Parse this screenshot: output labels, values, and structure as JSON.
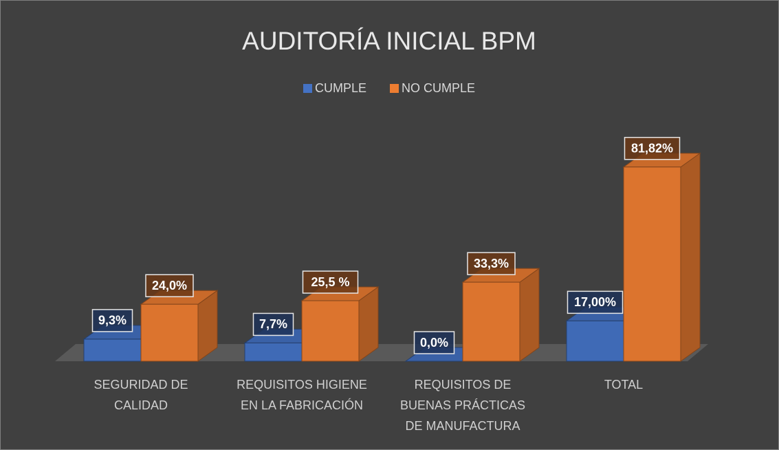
{
  "chart_data": {
    "type": "bar",
    "title": "AUDITORÍA INICIAL BPM",
    "categories": [
      [
        "SEGURIDAD DE",
        "CALIDAD"
      ],
      [
        "REQUISITOS HIGIENE",
        "EN LA FABRICACIÓN"
      ],
      [
        "REQUISITOS DE",
        "BUENAS PRÁCTICAS",
        "DE MANUFACTURA"
      ],
      [
        "TOTAL"
      ]
    ],
    "series": [
      {
        "name": "CUMPLE",
        "color": "#4472c4",
        "values": [
          9.3,
          7.7,
          0.0,
          17.0
        ],
        "value_labels": [
          "9,3%",
          "7,7%",
          "0,0%",
          "17,00%"
        ]
      },
      {
        "name": "NO CUMPLE",
        "color": "#ed7d31",
        "values": [
          24.0,
          25.5,
          33.3,
          81.82
        ],
        "value_labels": [
          "24,0%",
          "25,5 %",
          "33,3%",
          "81,82%"
        ]
      }
    ],
    "legend": "top"
  }
}
